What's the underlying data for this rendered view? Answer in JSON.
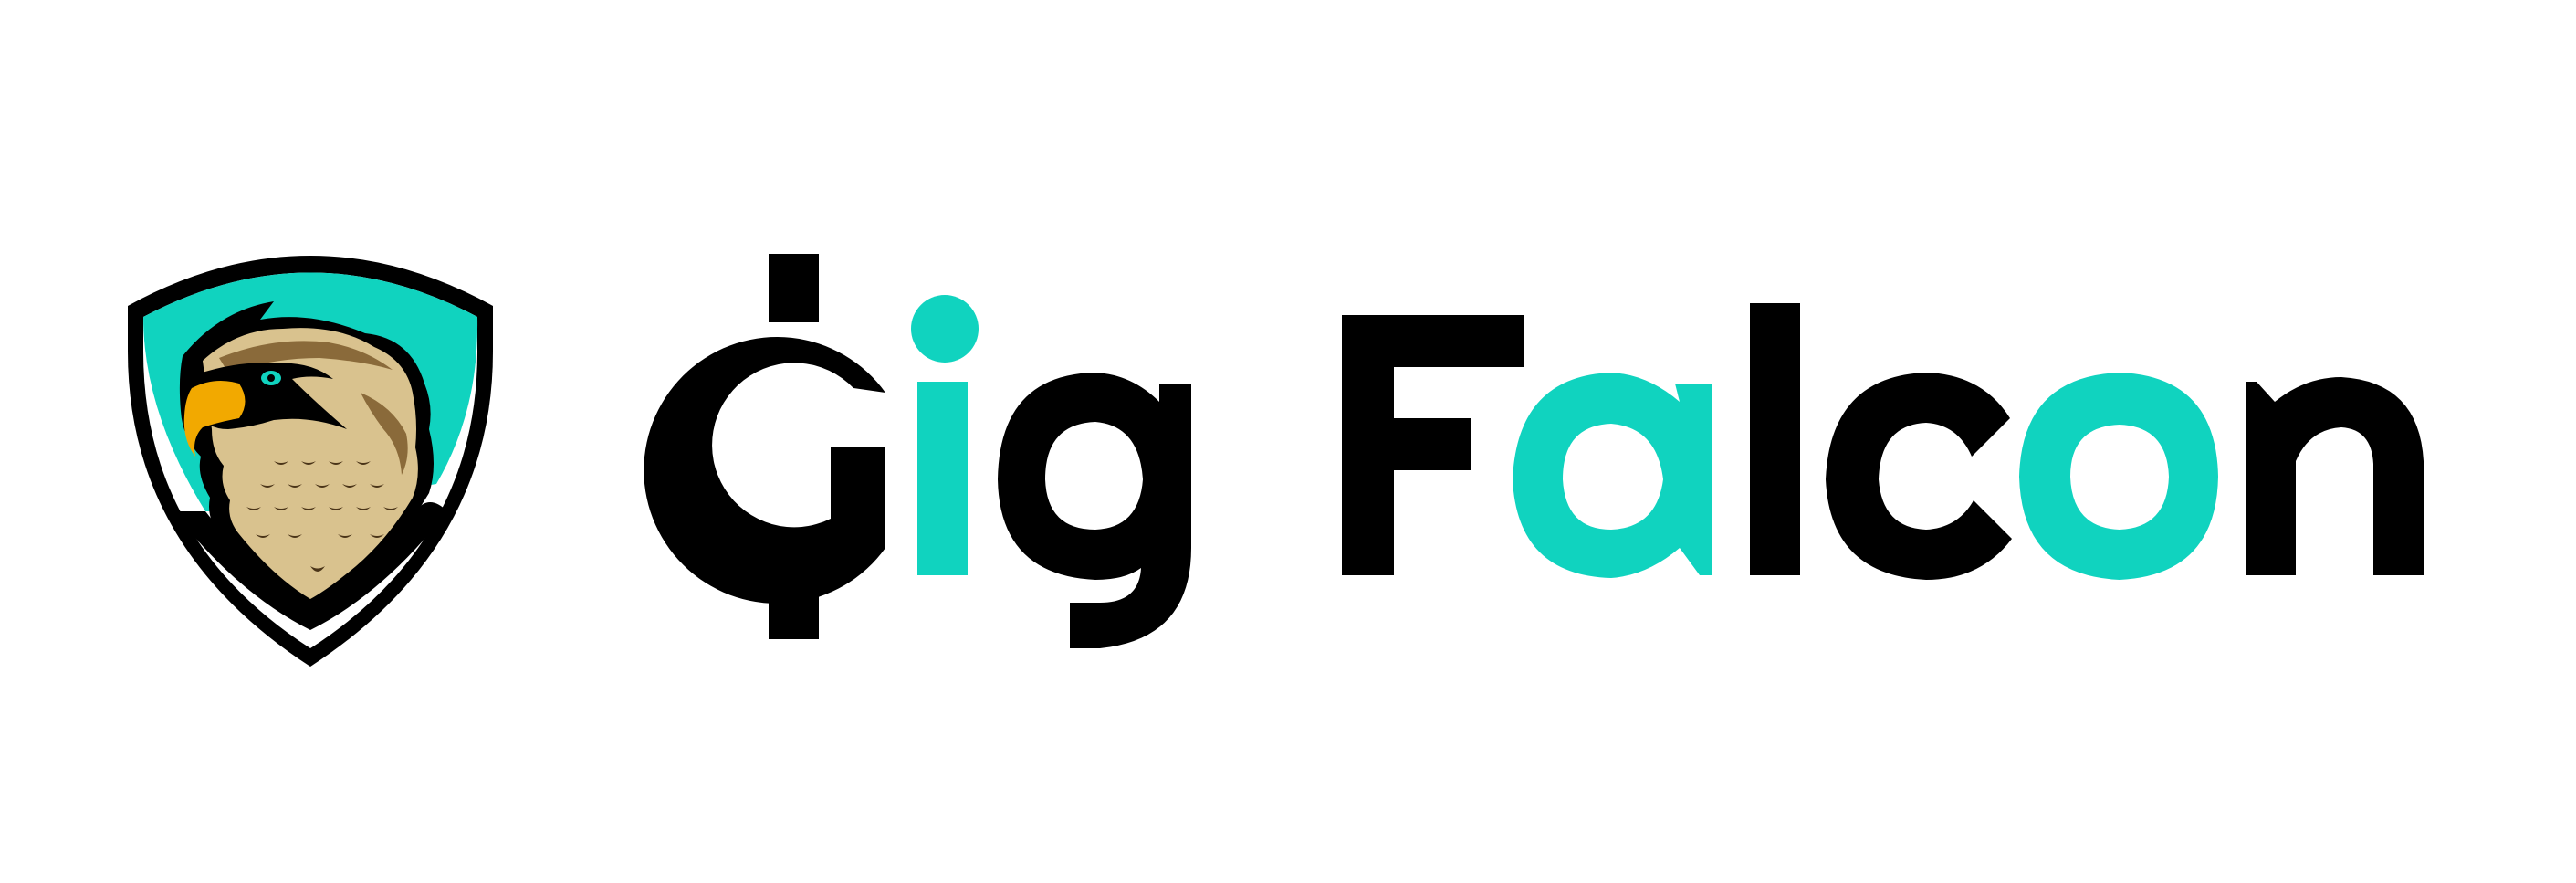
{
  "logo": {
    "wordmark": "Gig Falcon",
    "wordmark_letters": [
      {
        "char": "G",
        "color": "#000000"
      },
      {
        "char": "i",
        "color": "#10D3BF"
      },
      {
        "char": "g",
        "color": "#000000"
      },
      {
        "char": "F",
        "color": "#000000"
      },
      {
        "char": "a",
        "color": "#10D3BF"
      },
      {
        "char": "l",
        "color": "#000000"
      },
      {
        "char": "c",
        "color": "#000000"
      },
      {
        "char": "o",
        "color": "#10D3BF"
      },
      {
        "char": "n",
        "color": "#000000"
      }
    ],
    "emblem_icon": "falcon-shield-icon"
  },
  "colors": {
    "background": "#FFFFFF",
    "teal": "#10D3BF",
    "black": "#000000",
    "beak_orange": "#F2A900",
    "feather_tan": "#D9C28E",
    "feather_brown": "#8A6A3A"
  }
}
